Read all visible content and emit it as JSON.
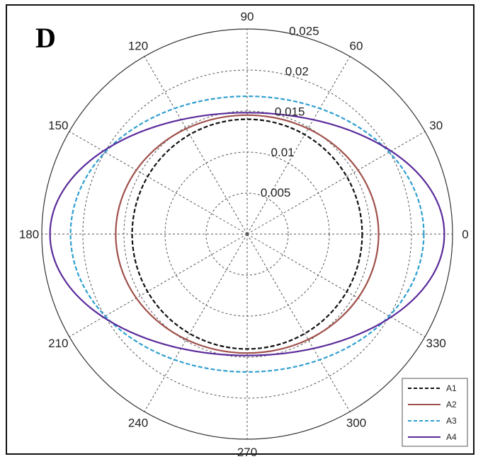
{
  "panel_label": "D",
  "chart_data": {
    "type": "line",
    "subtype": "polar",
    "angle_ticks": [
      0,
      30,
      60,
      90,
      120,
      150,
      180,
      210,
      240,
      270,
      300,
      330
    ],
    "angle_labels": [
      "0",
      "30",
      "60",
      "90",
      "120",
      "150",
      "180",
      "210",
      "240",
      "270",
      "300",
      "330"
    ],
    "r_ticks": [
      0.005,
      0.01,
      0.015,
      0.02,
      0.025
    ],
    "r_labels": [
      "0.005",
      "0.01",
      "0.015",
      "0.02",
      "0.025"
    ],
    "rlim": [
      0,
      0.025
    ],
    "grid": true,
    "legend_position": "bottom-right",
    "series": [
      {
        "name": "A1",
        "color": "#111111",
        "dash": "dashed",
        "r_x": 0.014,
        "r_y": 0.014
      },
      {
        "name": "A2",
        "color": "#a0504a",
        "dash": "solid",
        "r_x": 0.016,
        "r_y": 0.0145
      },
      {
        "name": "A3",
        "color": "#2f9fd0",
        "dash": "dashed",
        "r_x": 0.0215,
        "r_y": 0.0168
      },
      {
        "name": "A4",
        "color": "#5a2a9a",
        "dash": "solid",
        "r_x": 0.024,
        "r_y": 0.0148
      }
    ]
  }
}
